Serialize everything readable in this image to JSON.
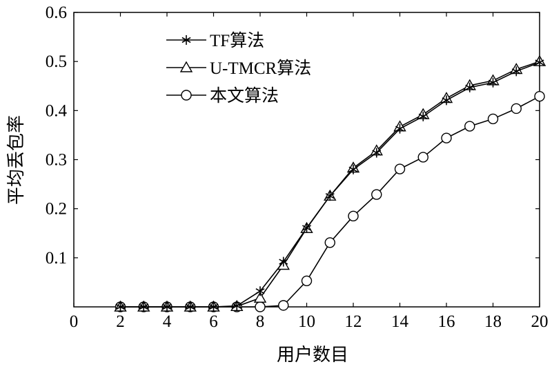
{
  "chart_data": {
    "type": "line",
    "xlabel": "用户数目",
    "ylabel": "平均丢包率",
    "xlim": [
      0,
      20
    ],
    "ylim": [
      0,
      0.6
    ],
    "x_ticks": [
      "0",
      "2",
      "4",
      "6",
      "8",
      "10",
      "12",
      "14",
      "16",
      "18",
      "20"
    ],
    "y_ticks": [
      "0.1",
      "0.2",
      "0.3",
      "0.4",
      "0.5",
      "0.6"
    ],
    "grid": false,
    "legend_position": "top-left",
    "x": [
      2,
      3,
      4,
      5,
      6,
      7,
      8,
      9,
      10,
      11,
      12,
      13,
      14,
      15,
      16,
      17,
      18,
      19,
      20
    ],
    "series": [
      {
        "name": "TF算法",
        "marker": "asterisk",
        "values": [
          0,
          0,
          0,
          0,
          0,
          0.002,
          0.032,
          0.092,
          0.161,
          0.226,
          0.28,
          0.314,
          0.363,
          0.388,
          0.421,
          0.447,
          0.457,
          0.48,
          0.498
        ]
      },
      {
        "name": "U-TMCR算法",
        "marker": "triangle",
        "values": [
          0,
          0,
          0,
          0,
          0,
          0.001,
          0.018,
          0.085,
          0.16,
          0.226,
          0.283,
          0.318,
          0.367,
          0.392,
          0.425,
          0.451,
          0.461,
          0.484,
          0.5
        ]
      },
      {
        "name": "本文算法",
        "marker": "circle",
        "values": [
          0,
          0,
          0,
          0,
          0,
          0,
          0,
          0.003,
          0.053,
          0.131,
          0.185,
          0.229,
          0.281,
          0.305,
          0.344,
          0.368,
          0.383,
          0.404,
          0.429
        ]
      }
    ]
  }
}
